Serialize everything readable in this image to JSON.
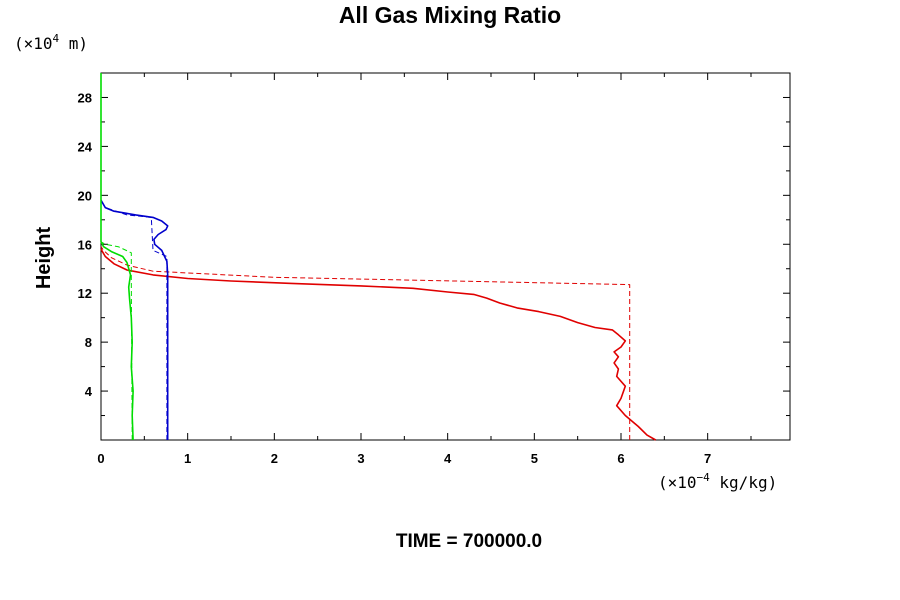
{
  "chart_data": {
    "type": "line",
    "title": "All Gas Mixing Ratio",
    "ylabel": "Height",
    "xlabel": "",
    "y_unit_prefix": "(×10",
    "y_unit_exp": "4",
    "y_unit_suffix": " m)",
    "x_unit_prefix": "(×10",
    "x_unit_exp": "−4",
    "x_unit_suffix": " kg/kg)",
    "xlim": [
      0,
      7.95
    ],
    "ylim": [
      0,
      30
    ],
    "x_ticks": [
      "0",
      "1",
      "2",
      "3",
      "4",
      "5",
      "6",
      "7"
    ],
    "y_ticks": [
      "4",
      "8",
      "12",
      "16",
      "20",
      "24",
      "28"
    ],
    "footer": "TIME = 700000.0",
    "colors": {
      "red": "#e00000",
      "blue": "#0000cc",
      "green": "#00dd00",
      "axis": "#000000"
    },
    "series": [
      {
        "name": "red-solid",
        "color": "#e00000",
        "style": "solid",
        "points": [
          [
            6.4,
            0.0
          ],
          [
            6.3,
            0.4
          ],
          [
            6.2,
            1.1
          ],
          [
            6.05,
            2.0
          ],
          [
            5.95,
            2.8
          ],
          [
            6.0,
            3.4
          ],
          [
            6.05,
            4.4
          ],
          [
            5.95,
            5.2
          ],
          [
            5.97,
            5.8
          ],
          [
            5.92,
            6.3
          ],
          [
            5.97,
            6.8
          ],
          [
            5.92,
            7.2
          ],
          [
            6.0,
            7.6
          ],
          [
            6.05,
            8.1
          ],
          [
            5.97,
            8.6
          ],
          [
            5.9,
            9.0
          ],
          [
            5.7,
            9.2
          ],
          [
            5.5,
            9.6
          ],
          [
            5.3,
            10.1
          ],
          [
            5.05,
            10.5
          ],
          [
            4.8,
            10.8
          ],
          [
            4.6,
            11.2
          ],
          [
            4.45,
            11.6
          ],
          [
            4.3,
            11.9
          ],
          [
            4.0,
            12.1
          ],
          [
            3.6,
            12.4
          ],
          [
            3.0,
            12.6
          ],
          [
            2.2,
            12.8
          ],
          [
            1.5,
            13.0
          ],
          [
            1.0,
            13.2
          ],
          [
            0.6,
            13.5
          ],
          [
            0.3,
            13.9
          ],
          [
            0.15,
            14.4
          ],
          [
            0.05,
            15.0
          ],
          [
            0.0,
            15.6
          ]
        ]
      },
      {
        "name": "red-dashed",
        "color": "#e00000",
        "style": "dashed",
        "points": [
          [
            6.1,
            0.0
          ],
          [
            6.1,
            12.7
          ],
          [
            2.0,
            13.3
          ],
          [
            0.6,
            13.8
          ],
          [
            0.3,
            14.3
          ],
          [
            0.12,
            14.9
          ],
          [
            0.03,
            15.5
          ],
          [
            0.0,
            15.8
          ]
        ]
      },
      {
        "name": "blue-solid",
        "color": "#0000cc",
        "style": "solid",
        "points": [
          [
            0.77,
            0.0
          ],
          [
            0.77,
            13.5
          ],
          [
            0.76,
            14.6
          ],
          [
            0.7,
            15.5
          ],
          [
            0.62,
            16.0
          ],
          [
            0.61,
            16.4
          ],
          [
            0.66,
            16.8
          ],
          [
            0.75,
            17.2
          ],
          [
            0.77,
            17.5
          ],
          [
            0.7,
            17.9
          ],
          [
            0.6,
            18.2
          ],
          [
            0.4,
            18.4
          ],
          [
            0.15,
            18.7
          ],
          [
            0.05,
            19.0
          ],
          [
            0.0,
            19.6
          ]
        ]
      },
      {
        "name": "blue-dashed",
        "color": "#0000cc",
        "style": "dashed",
        "points": [
          [
            0.76,
            0.0
          ],
          [
            0.76,
            15.0
          ],
          [
            0.6,
            15.5
          ],
          [
            0.58,
            18.2
          ],
          [
            0.3,
            18.4
          ],
          [
            0.05,
            19.0
          ],
          [
            0.0,
            19.6
          ]
        ]
      },
      {
        "name": "green-solid",
        "color": "#00dd00",
        "style": "solid",
        "points": [
          [
            0.37,
            0.0
          ],
          [
            0.36,
            2.0
          ],
          [
            0.37,
            4.0
          ],
          [
            0.35,
            6.0
          ],
          [
            0.36,
            8.0
          ],
          [
            0.35,
            10.0
          ],
          [
            0.33,
            11.5
          ],
          [
            0.32,
            12.5
          ],
          [
            0.34,
            13.5
          ],
          [
            0.3,
            14.5
          ],
          [
            0.25,
            15.0
          ],
          [
            0.12,
            15.4
          ],
          [
            0.03,
            15.8
          ],
          [
            0.0,
            16.2
          ]
        ]
      },
      {
        "name": "green-dashed",
        "color": "#00dd00",
        "style": "dashed",
        "points": [
          [
            0.36,
            0.0
          ],
          [
            0.35,
            13.0
          ],
          [
            0.35,
            15.3
          ],
          [
            0.2,
            15.8
          ],
          [
            0.05,
            16.0
          ],
          [
            0.0,
            16.2
          ]
        ]
      },
      {
        "name": "green-axis-line",
        "color": "#00dd00",
        "style": "solid",
        "points": [
          [
            0.0,
            16.2
          ],
          [
            0.0,
            30.0
          ]
        ]
      }
    ]
  }
}
